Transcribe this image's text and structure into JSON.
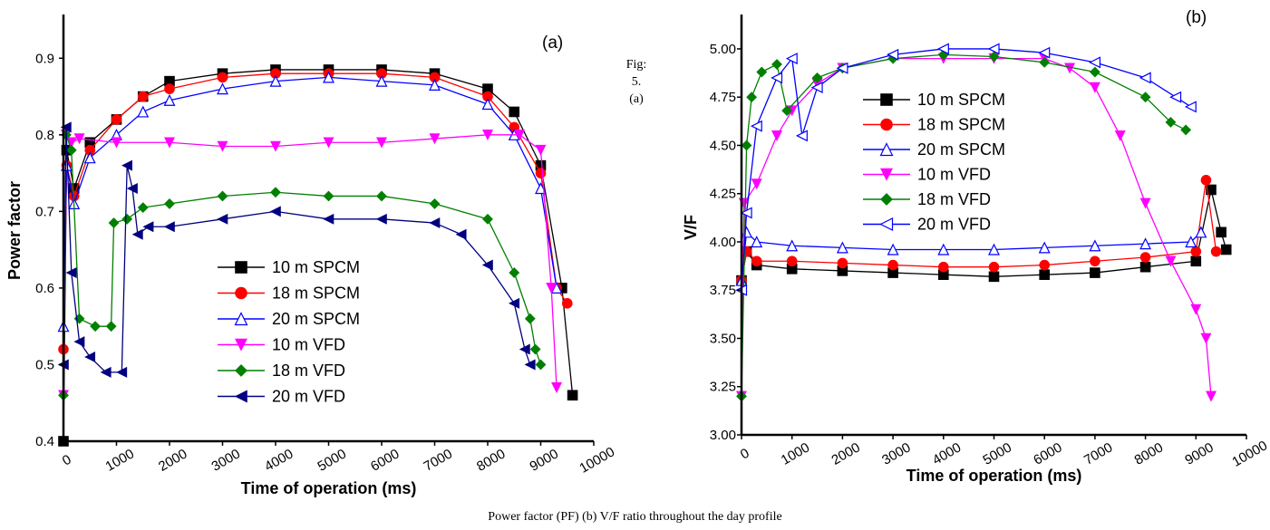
{
  "figure": {
    "side_note_lines": [
      "Fig:",
      "5.",
      "(a)"
    ],
    "caption": "Power factor (PF) (b) V/F ratio throughout the day profile"
  },
  "chart_data": [
    {
      "type": "line",
      "panel_label": "(a)",
      "xlabel": "Time of operation (ms)",
      "ylabel": "Power factor",
      "xlim": [
        0,
        10000
      ],
      "ylim": [
        0.4,
        0.95
      ],
      "xticks": [
        "0",
        "1000",
        "2000",
        "3000",
        "4000",
        "5000",
        "6000",
        "7000",
        "8000",
        "9000",
        "10000"
      ],
      "yticks": [
        "0.4",
        "0.5",
        "0.6",
        "0.7",
        "0.8",
        "0.9"
      ],
      "grid": false,
      "legend_position": "center",
      "series": [
        {
          "name": "10 m SPCM",
          "color": "#000000",
          "marker": "square",
          "x": [
            0,
            60,
            200,
            500,
            1000,
            1500,
            2000,
            3000,
            4000,
            5000,
            6000,
            7000,
            8000,
            8500,
            9000,
            9400,
            9600
          ],
          "y": [
            0.4,
            0.78,
            0.73,
            0.79,
            0.82,
            0.85,
            0.87,
            0.88,
            0.885,
            0.885,
            0.885,
            0.88,
            0.86,
            0.83,
            0.76,
            0.6,
            0.46
          ]
        },
        {
          "name": "18 m SPCM",
          "color": "#ff0000",
          "marker": "circle",
          "x": [
            0,
            60,
            200,
            500,
            1000,
            1500,
            2000,
            3000,
            4000,
            5000,
            6000,
            7000,
            8000,
            8500,
            9000,
            9300,
            9500
          ],
          "y": [
            0.52,
            0.76,
            0.72,
            0.78,
            0.82,
            0.85,
            0.86,
            0.875,
            0.88,
            0.88,
            0.88,
            0.875,
            0.85,
            0.81,
            0.75,
            0.6,
            0.58
          ]
        },
        {
          "name": "20 m SPCM",
          "color": "#0000ff",
          "marker": "triangle-up-open",
          "x": [
            0,
            60,
            200,
            500,
            1000,
            1500,
            2000,
            3000,
            4000,
            5000,
            6000,
            7000,
            8000,
            8500,
            9000,
            9300
          ],
          "y": [
            0.55,
            0.76,
            0.71,
            0.77,
            0.8,
            0.83,
            0.845,
            0.86,
            0.87,
            0.875,
            0.87,
            0.865,
            0.84,
            0.8,
            0.73,
            0.6
          ]
        },
        {
          "name": "10 m VFD",
          "color": "#ff00ff",
          "marker": "triangle-down",
          "x": [
            0,
            50,
            150,
            300,
            1000,
            2000,
            3000,
            4000,
            5000,
            6000,
            7000,
            8000,
            8600,
            9000,
            9200,
            9300
          ],
          "y": [
            0.46,
            0.8,
            0.79,
            0.795,
            0.79,
            0.79,
            0.785,
            0.785,
            0.79,
            0.79,
            0.795,
            0.8,
            0.8,
            0.78,
            0.6,
            0.47
          ]
        },
        {
          "name": "18 m VFD",
          "color": "#008000",
          "marker": "diamond",
          "x": [
            0,
            50,
            150,
            300,
            600,
            900,
            950,
            1200,
            1500,
            2000,
            3000,
            4000,
            5000,
            6000,
            7000,
            8000,
            8500,
            8800,
            8900,
            9000
          ],
          "y": [
            0.46,
            0.8,
            0.78,
            0.56,
            0.55,
            0.55,
            0.685,
            0.69,
            0.705,
            0.71,
            0.72,
            0.725,
            0.72,
            0.72,
            0.71,
            0.69,
            0.62,
            0.56,
            0.52,
            0.5
          ]
        },
        {
          "name": "20 m VFD",
          "color": "#000080",
          "marker": "triangle-left",
          "x": [
            0,
            50,
            150,
            300,
            500,
            800,
            1100,
            1200,
            1300,
            1400,
            1600,
            2000,
            3000,
            4000,
            5000,
            6000,
            7000,
            7500,
            8000,
            8500,
            8700,
            8800
          ],
          "y": [
            0.5,
            0.81,
            0.62,
            0.53,
            0.51,
            0.49,
            0.49,
            0.76,
            0.73,
            0.67,
            0.68,
            0.68,
            0.69,
            0.7,
            0.69,
            0.69,
            0.685,
            0.67,
            0.63,
            0.58,
            0.52,
            0.5
          ]
        }
      ]
    },
    {
      "type": "line",
      "panel_label": "(b)",
      "xlabel": "Time of operation (ms)",
      "ylabel": "V/F",
      "xlim": [
        0,
        10000
      ],
      "ylim": [
        3.0,
        5.15
      ],
      "xticks": [
        "0",
        "1000",
        "2000",
        "3000",
        "4000",
        "5000",
        "6000",
        "7000",
        "8000",
        "9000",
        "10000"
      ],
      "yticks": [
        "3.00",
        "3.25",
        "3.50",
        "3.75",
        "4.00",
        "4.25",
        "4.50",
        "4.75",
        "5.00"
      ],
      "grid": false,
      "legend_position": "top-center",
      "series": [
        {
          "name": "10 m SPCM",
          "color": "#000000",
          "marker": "square",
          "x": [
            0,
            100,
            300,
            1000,
            2000,
            3000,
            4000,
            5000,
            6000,
            7000,
            8000,
            9000,
            9300,
            9500,
            9600
          ],
          "y": [
            3.8,
            3.95,
            3.88,
            3.86,
            3.85,
            3.84,
            3.83,
            3.82,
            3.83,
            3.84,
            3.87,
            3.9,
            4.27,
            4.05,
            3.96
          ]
        },
        {
          "name": "18 m SPCM",
          "color": "#ff0000",
          "marker": "circle",
          "x": [
            0,
            100,
            300,
            1000,
            2000,
            3000,
            4000,
            5000,
            6000,
            7000,
            8000,
            9000,
            9200,
            9400
          ],
          "y": [
            3.8,
            3.95,
            3.9,
            3.9,
            3.89,
            3.88,
            3.87,
            3.87,
            3.88,
            3.9,
            3.92,
            3.95,
            4.32,
            3.95
          ]
        },
        {
          "name": "20 m SPCM",
          "color": "#0000ff",
          "marker": "triangle-up-open",
          "x": [
            0,
            100,
            300,
            1000,
            2000,
            3000,
            4000,
            5000,
            6000,
            7000,
            8000,
            8900,
            9100
          ],
          "y": [
            3.8,
            4.05,
            4.0,
            3.98,
            3.97,
            3.96,
            3.96,
            3.96,
            3.97,
            3.98,
            3.99,
            4.0,
            4.05
          ]
        },
        {
          "name": "10 m VFD",
          "color": "#ff00ff",
          "marker": "triangle-down",
          "x": [
            0,
            50,
            300,
            700,
            1000,
            1500,
            2000,
            3000,
            4000,
            5000,
            6000,
            6500,
            7000,
            7500,
            8000,
            8500,
            9000,
            9200,
            9300
          ],
          "y": [
            3.2,
            4.2,
            4.3,
            4.55,
            4.68,
            4.82,
            4.9,
            4.95,
            4.95,
            4.95,
            4.95,
            4.9,
            4.8,
            4.55,
            4.2,
            3.9,
            3.65,
            3.5,
            3.2
          ]
        },
        {
          "name": "18 m VFD",
          "color": "#008000",
          "marker": "diamond",
          "x": [
            0,
            100,
            200,
            400,
            700,
            900,
            1500,
            2000,
            3000,
            4000,
            5000,
            6000,
            7000,
            8000,
            8500,
            8800
          ],
          "y": [
            3.2,
            4.5,
            4.75,
            4.88,
            4.92,
            4.68,
            4.85,
            4.9,
            4.95,
            4.97,
            4.96,
            4.93,
            4.88,
            4.75,
            4.62,
            4.58
          ]
        },
        {
          "name": "20 m VFD",
          "color": "#0000ff",
          "marker": "triangle-left-open",
          "x": [
            0,
            100,
            300,
            700,
            1000,
            1200,
            1500,
            2000,
            3000,
            4000,
            5000,
            6000,
            7000,
            8000,
            8600,
            8900
          ],
          "y": [
            3.75,
            4.15,
            4.6,
            4.85,
            4.95,
            4.55,
            4.8,
            4.9,
            4.97,
            5.0,
            5.0,
            4.98,
            4.93,
            4.85,
            4.75,
            4.7
          ]
        }
      ]
    }
  ]
}
